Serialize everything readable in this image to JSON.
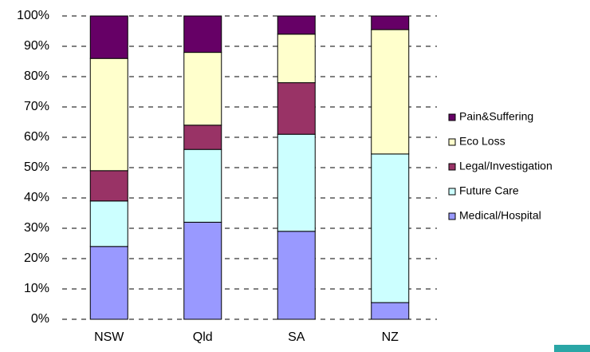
{
  "chart_data": {
    "type": "stacked_bar_100",
    "categories": [
      "NSW",
      "Qld",
      "SA",
      "NZ"
    ],
    "series": [
      {
        "name": "Medical/Hospital",
        "color": "#9999ff",
        "values": [
          24,
          32,
          29,
          5.5
        ]
      },
      {
        "name": "Future Care",
        "color": "#ccffff",
        "values": [
          15,
          24,
          32,
          49
        ]
      },
      {
        "name": "Legal/Investigation",
        "color": "#993366",
        "values": [
          10,
          8,
          17,
          0
        ]
      },
      {
        "name": "Eco Loss",
        "color": "#ffffcc",
        "values": [
          37,
          24,
          16,
          41
        ]
      },
      {
        "name": "Pain&Suffering",
        "color": "#660066",
        "values": [
          14,
          12,
          6,
          4.5
        ]
      }
    ],
    "ylim": [
      0,
      100
    ],
    "yticks": [
      {
        "value": 0,
        "label": "0%"
      },
      {
        "value": 10,
        "label": "10%"
      },
      {
        "value": 20,
        "label": "20%"
      },
      {
        "value": 30,
        "label": "30%"
      },
      {
        "value": 40,
        "label": "40%"
      },
      {
        "value": 50,
        "label": "50%"
      },
      {
        "value": 60,
        "label": "60%"
      },
      {
        "value": 70,
        "label": "70%"
      },
      {
        "value": 80,
        "label": "80%"
      },
      {
        "value": 90,
        "label": "90%"
      },
      {
        "value": 100,
        "label": "100%"
      }
    ],
    "grid": true,
    "legend": "right"
  }
}
